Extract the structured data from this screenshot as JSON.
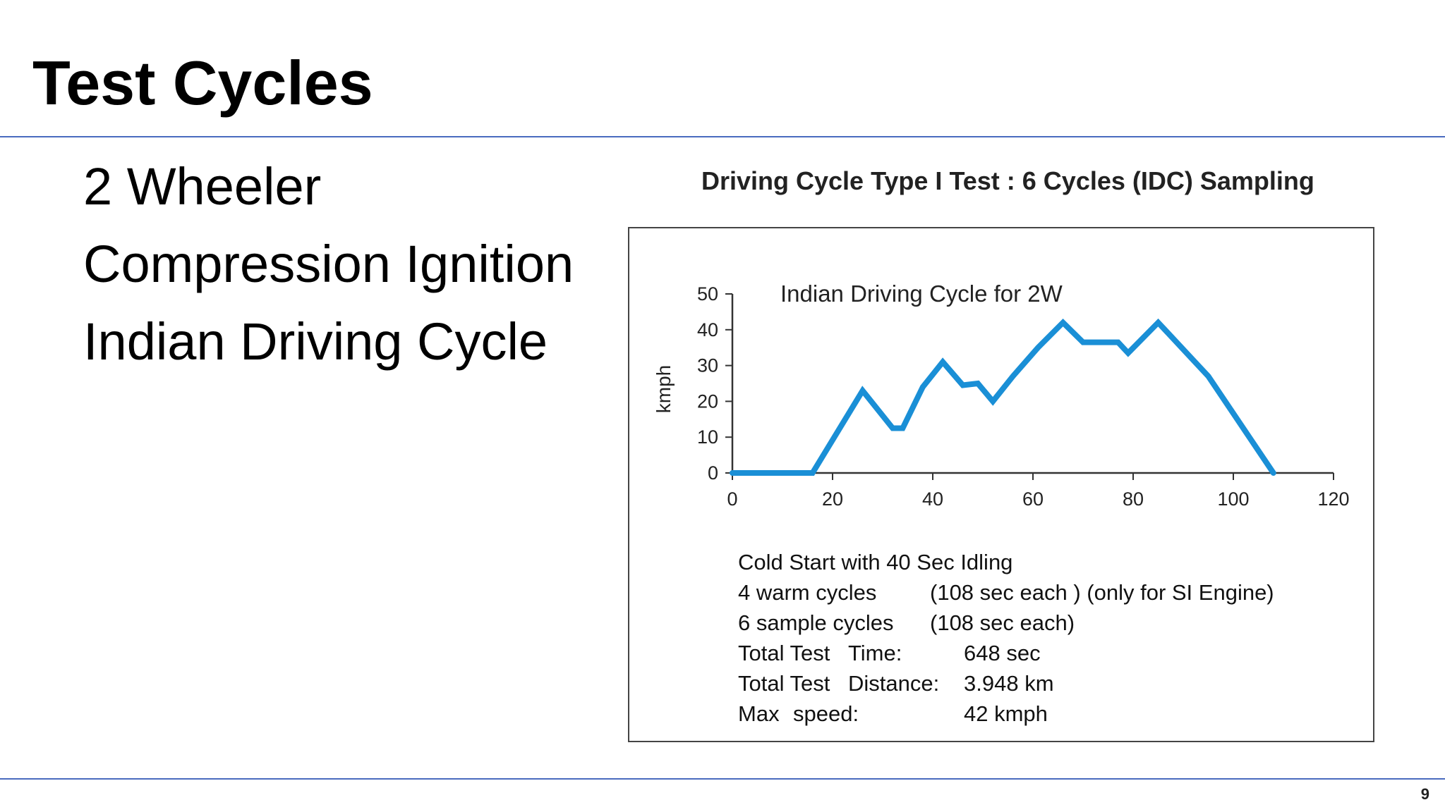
{
  "slide": {
    "title": "Test Cycles",
    "bullets": [
      "2 Wheeler",
      "Compression Ignition",
      "Indian Driving Cycle"
    ],
    "page_number": "9",
    "rule_color": "#4a6bbf"
  },
  "figure": {
    "heading": "Driving Cycle Type I Test : 6 Cycles (IDC) Sampling",
    "notes": [
      {
        "left": "Cold Start with 40 Sec Idling"
      },
      {
        "left": "4 warm cycles",
        "right": "(108 sec each ) (only for SI Engine)"
      },
      {
        "left": "6 sample cycles",
        "right": "(108 sec each)"
      },
      {
        "a": "Total Test",
        "b": "Time:",
        "c": "648  sec"
      },
      {
        "a": "Total Test",
        "b": "Distance:",
        "c": "3.948 km"
      },
      {
        "a": "Max",
        "b": "speed:",
        "c": "42 kmph"
      }
    ]
  },
  "chart_data": {
    "type": "line",
    "title": "Indian Driving Cycle for 2W",
    "xlabel": "",
    "ylabel": "kmph",
    "xlim": [
      0,
      120
    ],
    "ylim": [
      0,
      50
    ],
    "xticks": [
      0,
      20,
      40,
      60,
      80,
      100,
      120
    ],
    "yticks": [
      0,
      10,
      20,
      30,
      40,
      50
    ],
    "grid": false,
    "line_color": "#1a8fd6",
    "series": [
      {
        "x": [
          0,
          16,
          26,
          32,
          34,
          38,
          42,
          46,
          49,
          52,
          56,
          61,
          66,
          70,
          77,
          79,
          85,
          95,
          108
        ],
        "y": [
          0,
          0,
          23,
          12.5,
          12.5,
          24,
          31,
          24.5,
          25,
          20,
          27,
          35,
          42,
          36.5,
          36.5,
          33.5,
          42,
          27,
          0
        ]
      }
    ]
  }
}
